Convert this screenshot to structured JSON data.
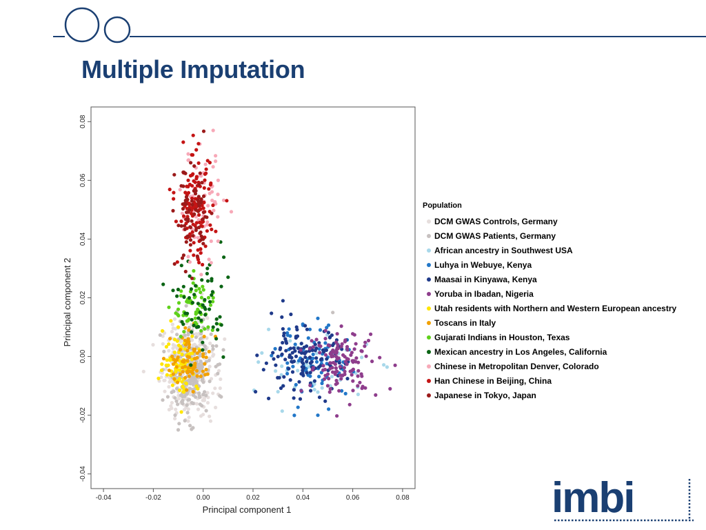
{
  "slide": {
    "title": "Multiple Imputation",
    "colors": {
      "title": "#1a3f72",
      "rule": "#1a3f72"
    }
  },
  "logo": {
    "text": "imbi",
    "color": "#1a3f72"
  },
  "chart_data": {
    "type": "scatter",
    "title": "",
    "xlabel": "Principal component 1",
    "ylabel": "Principal component 2",
    "xlim": [
      -0.045,
      0.085
    ],
    "ylim": [
      -0.045,
      0.085
    ],
    "xticks": [
      -0.04,
      -0.02,
      0.0,
      0.02,
      0.04,
      0.06,
      0.08
    ],
    "yticks": [
      -0.04,
      -0.02,
      0.0,
      0.02,
      0.04,
      0.06,
      0.08
    ],
    "xtick_labels": [
      "-0.04",
      "-0.02",
      "0.00",
      "0.02",
      "0.04",
      "0.06",
      "0.08"
    ],
    "ytick_labels": [
      "-0.04",
      "-0.02",
      "0.00",
      "0.02",
      "0.04",
      "0.06",
      "0.08"
    ],
    "grid": false,
    "legend": {
      "title": "Population",
      "position": "right"
    },
    "series": [
      {
        "name": "DCM GWAS Controls, Germany",
        "color": "#e6dedd",
        "cluster": {
          "cx": -0.006,
          "cy": -0.004,
          "sx": 0.0055,
          "sy": 0.0085,
          "n": 260
        },
        "values": [
          [
            -0.008,
            -0.004
          ],
          [
            -0.004,
            0.002
          ],
          [
            -0.01,
            -0.012
          ],
          [
            -0.002,
            -0.018
          ],
          [
            -0.012,
            0.004
          ],
          [
            -0.006,
            -0.022
          ]
        ]
      },
      {
        "name": "DCM GWAS Patients, Germany",
        "color": "#c7c1c0",
        "cluster": {
          "cx": -0.005,
          "cy": -0.005,
          "sx": 0.0045,
          "sy": 0.0075,
          "n": 230
        },
        "values": [
          [
            -0.005,
            -0.005
          ],
          [
            -0.002,
            -0.01
          ],
          [
            -0.009,
            0.0
          ],
          [
            -0.004,
            -0.016
          ],
          [
            -0.01,
            -0.025
          ],
          [
            0.052,
            0.015
          ]
        ]
      },
      {
        "name": "African ancestry in Southwest USA",
        "color": "#a8d8ea",
        "cluster": {
          "cx": 0.045,
          "cy": -0.004,
          "sx": 0.011,
          "sy": 0.006,
          "n": 45
        },
        "values": [
          [
            0.03,
            -0.012
          ],
          [
            0.044,
            -0.01
          ],
          [
            0.055,
            -0.008
          ],
          [
            0.038,
            -0.002
          ]
        ]
      },
      {
        "name": "Luhya in Webuye, Kenya",
        "color": "#2277c8",
        "cluster": {
          "cx": 0.046,
          "cy": -0.002,
          "sx": 0.008,
          "sy": 0.006,
          "n": 80
        },
        "values": [
          [
            0.046,
            0.013
          ],
          [
            0.04,
            -0.006
          ],
          [
            0.052,
            0.002
          ],
          [
            0.046,
            -0.02
          ]
        ]
      },
      {
        "name": "Maasai in Kinyawa, Kenya",
        "color": "#1f3a8a",
        "cluster": {
          "cx": 0.04,
          "cy": -0.001,
          "sx": 0.0085,
          "sy": 0.0055,
          "n": 130
        },
        "values": [
          [
            0.032,
            0.019
          ],
          [
            0.021,
            -0.012
          ],
          [
            0.03,
            0.0
          ],
          [
            0.045,
            -0.004
          ],
          [
            0.035,
            -0.008
          ]
        ]
      },
      {
        "name": "Yoruba in Ibadan, Nigeria",
        "color": "#8e3d8c",
        "cluster": {
          "cx": 0.056,
          "cy": -0.002,
          "sx": 0.007,
          "sy": 0.0055,
          "n": 120
        },
        "values": [
          [
            0.077,
            -0.003
          ],
          [
            0.075,
            -0.011
          ],
          [
            0.062,
            -0.01
          ],
          [
            0.054,
            0.004
          ],
          [
            0.05,
            -0.006
          ]
        ]
      },
      {
        "name": "Utah residents with Northern and Western European ancestry",
        "color": "#ffe600",
        "cluster": {
          "cx": -0.009,
          "cy": -0.002,
          "sx": 0.0035,
          "sy": 0.005,
          "n": 75
        },
        "values": [
          [
            -0.01,
            0.01
          ],
          [
            -0.014,
            -0.003
          ],
          [
            -0.008,
            -0.012
          ],
          [
            -0.004,
            -0.006
          ]
        ]
      },
      {
        "name": "Toscans in Italy",
        "color": "#f2a100",
        "cluster": {
          "cx": -0.005,
          "cy": -0.001,
          "sx": 0.004,
          "sy": 0.0045,
          "n": 80
        },
        "values": [
          [
            -0.006,
            0.006
          ],
          [
            -0.012,
            -0.006
          ],
          [
            0.0,
            0.0
          ],
          [
            -0.004,
            -0.012
          ]
        ]
      },
      {
        "name": "Gujarati Indians in Houston, Texas",
        "color": "#5fd11a",
        "cluster": {
          "cx": -0.003,
          "cy": 0.016,
          "sx": 0.0045,
          "sy": 0.005,
          "n": 60
        },
        "values": [
          [
            -0.004,
            0.025
          ],
          [
            0.002,
            0.01
          ],
          [
            -0.008,
            0.014
          ],
          [
            0.004,
            0.02
          ]
        ]
      },
      {
        "name": "Mexican ancestry in Los Angeles, California",
        "color": "#0a6414",
        "cluster": {
          "cx": -0.001,
          "cy": 0.018,
          "sx": 0.005,
          "sy": 0.0075,
          "n": 55
        },
        "values": [
          [
            0.01,
            0.027
          ],
          [
            0.007,
            0.039
          ],
          [
            -0.008,
            0.011
          ],
          [
            0.004,
            0.01
          ]
        ]
      },
      {
        "name": "Chinese in Metropolitan Denver, Colorado",
        "color": "#f7a9b8",
        "cluster": {
          "cx": -0.001,
          "cy": 0.05,
          "sx": 0.0045,
          "sy": 0.009,
          "n": 70
        },
        "values": [
          [
            0.004,
            0.077
          ],
          [
            0.006,
            0.06
          ],
          [
            0.005,
            0.052
          ],
          [
            -0.006,
            0.069
          ]
        ]
      },
      {
        "name": "Han Chinese in Beijing, China",
        "color": "#c41414",
        "cluster": {
          "cx": -0.003,
          "cy": 0.05,
          "sx": 0.0035,
          "sy": 0.009,
          "n": 110
        },
        "values": [
          [
            -0.008,
            0.073
          ],
          [
            -0.006,
            0.06
          ],
          [
            -0.004,
            0.045
          ],
          [
            -0.002,
            0.033
          ]
        ]
      },
      {
        "name": "Japanese in Tokyo, Japan",
        "color": "#9b1a1a",
        "cluster": {
          "cx": -0.004,
          "cy": 0.047,
          "sx": 0.0035,
          "sy": 0.009,
          "n": 75
        },
        "values": [
          [
            -0.008,
            0.058
          ],
          [
            -0.003,
            0.05
          ],
          [
            0.0,
            0.04
          ],
          [
            -0.005,
            0.066
          ]
        ]
      }
    ]
  }
}
